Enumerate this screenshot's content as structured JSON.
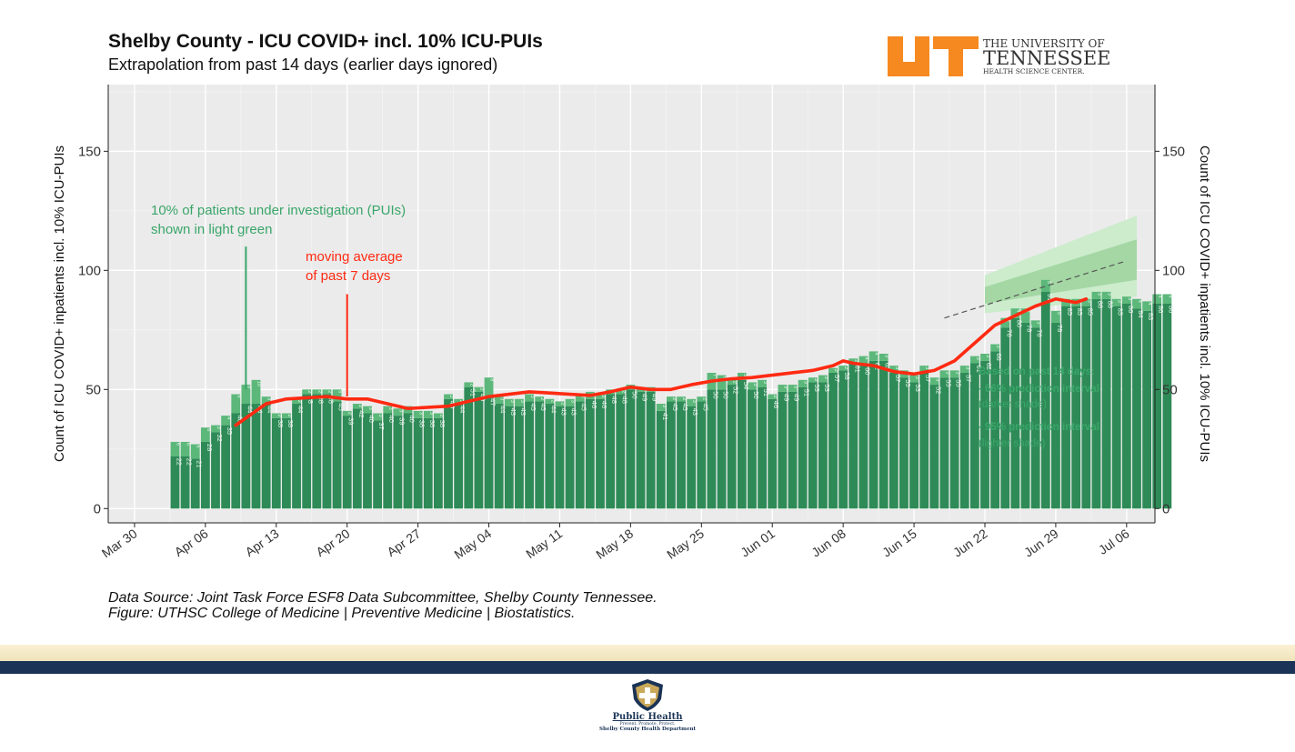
{
  "header": {
    "title": "Shelby County - ICU COVID+ incl. 10% ICU-PUIs",
    "subtitle": "Extrapolation from past 14 days (earlier days ignored)"
  },
  "logos": {
    "ut_line1": "THE UNIVERSITY OF",
    "ut_line2": "TENNESSEE",
    "ut_line3": "HEALTH SCIENCE CENTER.",
    "ut_color": "#f6891f",
    "public_health_name": "Public Health",
    "public_health_tagline": "Prevent. Promote. Protect.",
    "public_health_dept": "Shelby County Health Department"
  },
  "footer": {
    "source_line1": "Data Source: Joint Task Force ESF8 Data Subcommittee, Shelby County Tennessee.",
    "source_line2": "Figure: UTHSC College of Medicine | Preventive Medicine | Biostatistics."
  },
  "chart_data": {
    "type": "bar",
    "ylabel": "Count of ICU COVID+ inpatients incl. 10% ICU-PUIs",
    "ylabel_right": "Count of ICU COVID+ inpatients incl. 10% ICU-PUIs",
    "ylim": [
      -6,
      178
    ],
    "yticks": [
      0,
      50,
      100,
      150
    ],
    "x_start_date": "2020-03-29",
    "xlim_days": [
      -1.6,
      101.8
    ],
    "xticks": [
      "Mar 30",
      "Apr 06",
      "Apr 13",
      "Apr 20",
      "Apr 27",
      "May 04",
      "May 11",
      "May 18",
      "May 25",
      "Jun 01",
      "Jun 08",
      "Jun 15",
      "Jun 22",
      "Jun 29",
      "Jul 06"
    ],
    "xtick_days": [
      1,
      8,
      15,
      22,
      29,
      36,
      43,
      50,
      57,
      64,
      71,
      78,
      85,
      92,
      99
    ],
    "grid": true,
    "background": "#ebebeb",
    "colors": {
      "confirmed": "#2e8b57",
      "pui": "#5cb87a",
      "moving_average": "#ff2a12",
      "trend": "#555555",
      "interval_66": "#a4d7a4",
      "interval_95": "#cceccc",
      "annotation_green": "#3aa66a",
      "annotation_red": "#ff2a12"
    },
    "bars_start_day": 5,
    "series": [
      {
        "name": "ICU COVID+",
        "values": [
          22,
          22,
          21,
          28,
          32,
          35,
          40,
          44,
          44,
          44,
          38,
          38,
          44,
          48,
          48,
          48,
          45,
          39,
          42,
          40,
          37,
          40,
          39,
          40,
          38,
          38,
          38,
          46,
          44,
          51,
          49,
          47,
          44,
          43,
          43,
          45,
          45,
          44,
          43,
          43,
          45,
          46,
          46,
          48,
          48,
          50,
          49,
          49,
          41,
          45,
          45,
          43,
          45,
          50,
          50,
          52,
          54,
          50,
          51,
          46,
          49,
          49,
          51,
          53,
          53,
          57,
          58,
          61,
          60,
          62,
          62,
          57,
          55,
          53,
          57,
          52,
          55,
          55,
          57,
          61,
          62,
          66,
          76,
          80,
          78,
          76,
          91,
          78,
          85,
          85,
          85,
          88,
          88,
          85,
          86,
          84,
          83,
          86,
          86
        ]
      },
      {
        "name": "ICU-PUIs (10%)",
        "values": [
          6,
          6,
          6,
          6,
          3,
          4,
          8,
          8,
          10,
          3,
          2,
          2,
          2,
          2,
          2,
          2,
          5,
          2,
          2,
          3,
          3,
          3,
          3,
          3,
          3,
          3,
          2,
          2,
          2,
          2,
          2,
          8,
          3,
          3,
          3,
          3,
          2,
          2,
          2,
          3,
          3,
          3,
          2,
          2,
          2,
          2,
          2,
          2,
          3,
          2,
          2,
          3,
          2,
          7,
          6,
          2,
          3,
          3,
          3,
          2,
          3,
          3,
          3,
          2,
          3,
          2,
          2,
          2,
          4,
          4,
          3,
          3,
          3,
          3,
          3,
          3,
          3,
          3,
          3,
          3,
          3,
          3,
          4,
          4,
          6,
          3,
          5,
          5,
          3,
          3,
          3,
          3,
          3,
          3,
          3,
          4,
          4,
          4,
          4
        ]
      }
    ],
    "bar_labels_confirmed": [
      22,
      22,
      21,
      28,
      32,
      35,
      40,
      44,
      44,
      44,
      38,
      38,
      44,
      48,
      48,
      48,
      45,
      39,
      42,
      40,
      37,
      40,
      39,
      40,
      38,
      38,
      38,
      46,
      44,
      51,
      49,
      47,
      44,
      43,
      43,
      45,
      45,
      44,
      43,
      43,
      45,
      46,
      46,
      48,
      48,
      50,
      49,
      49,
      41,
      45,
      45,
      43,
      45,
      50,
      50,
      52,
      54,
      50,
      51,
      46,
      49,
      49,
      51,
      53,
      53,
      57,
      58,
      61,
      60,
      62,
      62,
      57,
      55,
      53,
      57,
      52,
      55,
      55,
      57,
      61,
      62,
      66,
      76,
      80,
      78,
      76,
      91,
      78,
      85,
      85,
      85,
      88,
      88,
      85,
      86,
      84,
      83,
      86,
      86
    ],
    "bar_labels_pui": [
      6,
      6,
      6,
      6,
      3,
      4,
      8,
      8,
      10,
      3,
      2,
      2,
      2,
      2,
      2,
      2,
      5,
      2,
      2,
      3,
      3,
      3,
      3,
      3,
      3,
      3,
      2,
      2,
      2,
      2,
      2,
      8,
      3,
      3,
      3,
      3,
      2,
      2,
      2,
      3,
      3,
      3,
      2,
      2,
      2,
      2,
      2,
      2,
      3,
      2,
      2,
      3,
      2,
      7,
      6,
      2,
      3,
      3,
      3,
      2,
      3,
      3,
      3,
      2,
      3,
      2,
      2,
      2,
      4,
      4,
      3,
      3,
      3,
      3,
      3,
      3,
      3,
      3,
      3,
      3,
      3,
      3,
      4,
      4,
      6,
      3,
      5,
      5,
      3,
      3,
      3,
      3,
      3,
      3,
      3,
      4,
      4,
      4,
      4
    ],
    "moving_average": {
      "name": "moving average of past 7 days",
      "x": [
        11,
        12,
        14,
        16,
        18,
        20,
        22,
        24,
        26,
        28,
        30,
        32,
        34,
        36,
        38,
        40,
        42,
        44,
        46,
        48,
        50,
        52,
        54,
        56,
        58,
        60,
        62,
        64,
        66,
        68,
        70,
        71,
        72,
        74,
        76,
        78,
        80,
        82,
        84,
        86,
        88,
        90,
        92,
        94,
        95
      ],
      "y": [
        35,
        38,
        44,
        46,
        46.5,
        47,
        46,
        46,
        44,
        42,
        42.5,
        43,
        45,
        47,
        48,
        49,
        48.5,
        48,
        47.5,
        49,
        51,
        50,
        50,
        52,
        53.5,
        54.5,
        55,
        56,
        57,
        58,
        60,
        62,
        61,
        60,
        57.5,
        56.5,
        58,
        62,
        69.5,
        77,
        81,
        85,
        88,
        86.5,
        88
      ]
    },
    "trend": {
      "x": [
        81,
        99
      ],
      "y": [
        80,
        104
      ]
    },
    "prediction_interval_66": {
      "x": [
        85,
        100
      ],
      "lower": [
        86,
        96
      ],
      "upper": [
        93,
        113
      ]
    },
    "prediction_interval_95": {
      "x": [
        85,
        100
      ],
      "lower": [
        82,
        89
      ],
      "upper": [
        98,
        123
      ]
    },
    "annotations": [
      {
        "text_lines": [
          "10% of patients under investigation (PUIs)",
          "shown in light green"
        ],
        "color": "annotation_green",
        "anchor_day": 12,
        "anchor_value": 50,
        "tip_value": 110
      },
      {
        "text_lines": [
          "moving average",
          "of past 7 days"
        ],
        "color": "annotation_red",
        "anchor_day": 22,
        "anchor_value": 47,
        "tip_value": 90
      },
      {
        "text_lines": [
          "Based on past 14 days:",
          "- 66% prediction interval",
          "(darker shade)",
          "- 95% prediction interval",
          "(lighter shade)"
        ],
        "color": "annotation_green"
      }
    ]
  }
}
